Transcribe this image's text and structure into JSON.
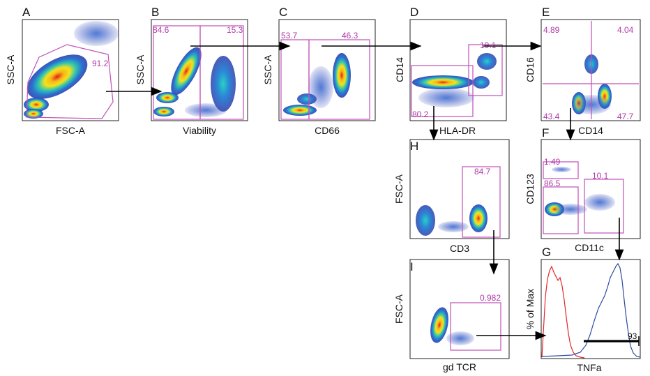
{
  "panels": [
    {
      "id": "A",
      "xlabel": "FSC-A",
      "ylabel": "SSC-A",
      "gates": [
        "91.2"
      ]
    },
    {
      "id": "B",
      "xlabel": "Viability",
      "ylabel": "SSC-A",
      "gates": [
        "84.6",
        "15.3"
      ]
    },
    {
      "id": "C",
      "xlabel": "CD66",
      "ylabel": "SSC-A",
      "gates": [
        "53.7",
        "46.3"
      ]
    },
    {
      "id": "D",
      "xlabel": "HLA-DR",
      "ylabel": "CD14",
      "gates": [
        "19.1",
        "80.2"
      ]
    },
    {
      "id": "E",
      "xlabel": "CD14",
      "ylabel": "CD16",
      "gates": [
        "4.89",
        "4.04",
        "43.4",
        "47.7"
      ]
    },
    {
      "id": "F",
      "xlabel": "CD11c",
      "ylabel": "CD123",
      "gates": [
        "1.49",
        "86.5",
        "10.1"
      ]
    },
    {
      "id": "G",
      "xlabel": "TNFa",
      "ylabel": "% of Max",
      "gates": [
        "93"
      ]
    },
    {
      "id": "H",
      "xlabel": "CD3",
      "ylabel": "FSC-A",
      "gates": [
        "84.7"
      ]
    },
    {
      "id": "I",
      "xlabel": "gd TCR",
      "ylabel": "FSC-A",
      "gates": [
        "0.982"
      ]
    }
  ],
  "colors": {
    "gate": "#c050b8",
    "density_low": "#2b3fae",
    "density_mid": "#22c7c9",
    "density_high": "#f2e21c",
    "density_peak": "#e3201b",
    "hist_control": "#e0282a",
    "hist_sample": "#2d4ba0"
  }
}
